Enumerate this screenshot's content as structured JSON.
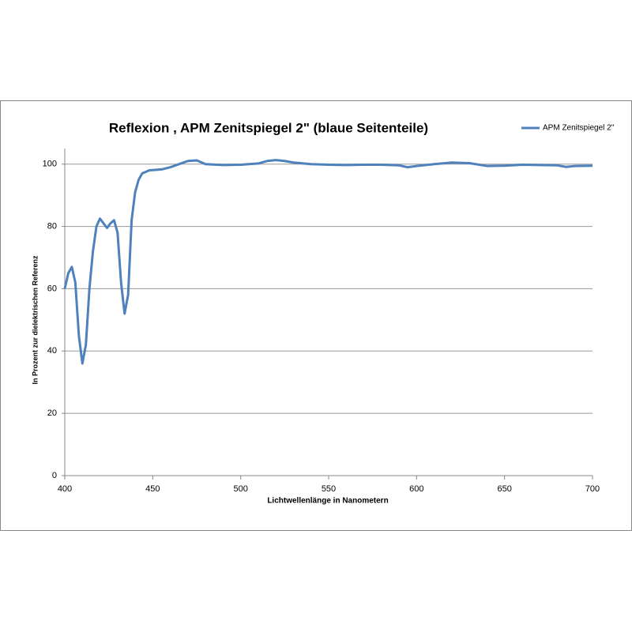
{
  "chart_data": {
    "type": "line",
    "title": "Reflexion , APM Zenitspiegel 2\" (blaue Seitenteile)",
    "x_label": "Lichtwellenlänge in Nanometern",
    "y_label": "In Prozent zur dielektrischen Referenz",
    "x": [
      400,
      402,
      404,
      406,
      408,
      410,
      412,
      414,
      416,
      418,
      420,
      422,
      424,
      426,
      428,
      430,
      432,
      434,
      436,
      438,
      440,
      442,
      444,
      448,
      455,
      460,
      465,
      470,
      475,
      480,
      490,
      500,
      510,
      515,
      520,
      525,
      530,
      540,
      550,
      560,
      570,
      580,
      590,
      595,
      600,
      610,
      620,
      630,
      640,
      650,
      660,
      670,
      680,
      685,
      690,
      700
    ],
    "series": [
      {
        "name": "APM Zenitspiegel 2\"",
        "color": "#4f81bd",
        "values": [
          60,
          65,
          67,
          62,
          45,
          36,
          42,
          60,
          72,
          80,
          82.5,
          81,
          79.5,
          81,
          82,
          78,
          62,
          52,
          58,
          82,
          91,
          95,
          97,
          98,
          98.3,
          99,
          100,
          101,
          101.2,
          100,
          99.7,
          99.8,
          100.2,
          101,
          101.3,
          101,
          100.5,
          100,
          99.8,
          99.7,
          99.8,
          99.8,
          99.6,
          99,
          99.4,
          100,
          100.5,
          100.3,
          99.4,
          99.5,
          99.8,
          99.7,
          99.6,
          99.1,
          99.4,
          99.5
        ]
      }
    ],
    "xlim": [
      400,
      700
    ],
    "xticks": [
      400,
      450,
      500,
      550,
      600,
      650,
      700
    ],
    "ylim": [
      0,
      105
    ],
    "yticks": [
      0,
      20,
      40,
      60,
      80,
      100
    ],
    "grid": true,
    "legend": "top-right"
  }
}
